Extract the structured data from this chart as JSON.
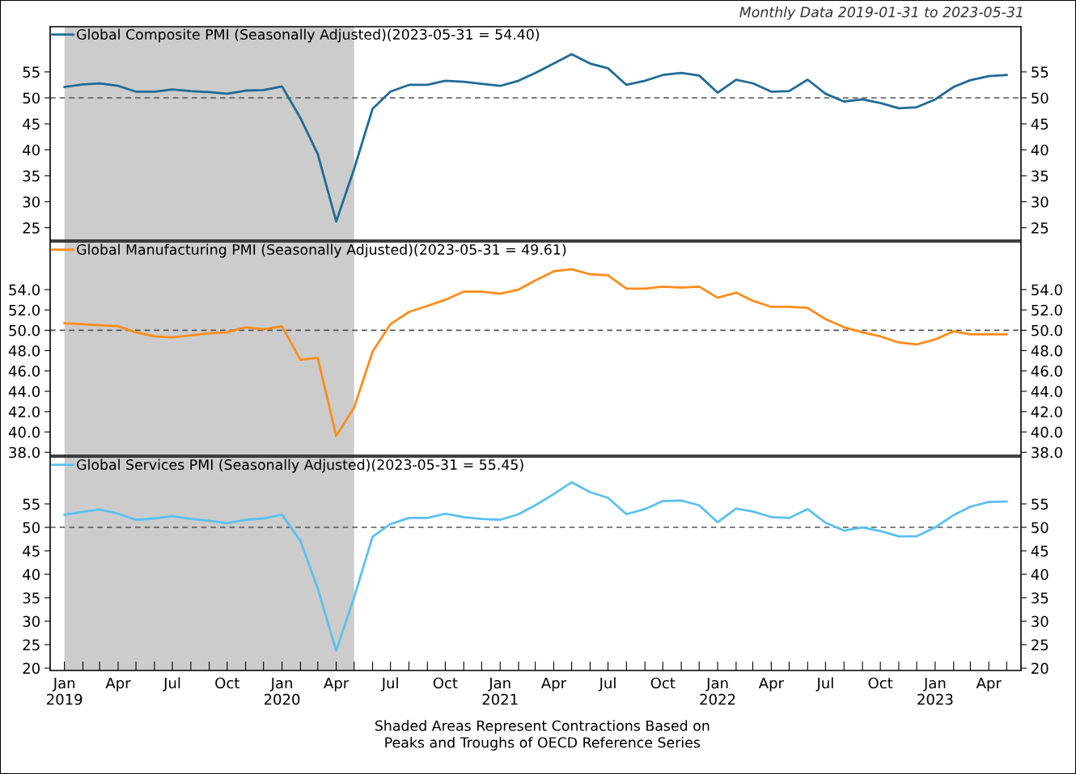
{
  "chart_data": [
    {
      "type": "line",
      "subtitle": "Monthly Data 2019-01-31 to 2023-05-31",
      "x": [
        "2019-01",
        "2019-02",
        "2019-03",
        "2019-04",
        "2019-05",
        "2019-06",
        "2019-07",
        "2019-08",
        "2019-09",
        "2019-10",
        "2019-11",
        "2019-12",
        "2020-01",
        "2020-02",
        "2020-03",
        "2020-04",
        "2020-05",
        "2020-06",
        "2020-07",
        "2020-08",
        "2020-09",
        "2020-10",
        "2020-11",
        "2020-12",
        "2021-01",
        "2021-02",
        "2021-03",
        "2021-04",
        "2021-05",
        "2021-06",
        "2021-07",
        "2021-08",
        "2021-09",
        "2021-10",
        "2021-11",
        "2021-12",
        "2022-01",
        "2022-02",
        "2022-03",
        "2022-04",
        "2022-05",
        "2022-06",
        "2022-07",
        "2022-08",
        "2022-09",
        "2022-10",
        "2022-11",
        "2022-12",
        "2023-01",
        "2023-02",
        "2023-03",
        "2023-04",
        "2023-05"
      ],
      "series": [
        {
          "name": "Global Composite PMI (Seasonally Adjusted)(2023-05-31 = 54.40)",
          "color": "#1f6a96",
          "values": [
            52.1,
            52.6,
            52.8,
            52.3,
            51.2,
            51.2,
            51.6,
            51.3,
            51.1,
            50.8,
            51.4,
            51.5,
            52.2,
            46.1,
            39.2,
            26.2,
            36.3,
            47.9,
            51.2,
            52.5,
            52.5,
            53.3,
            53.1,
            52.7,
            52.3,
            53.3,
            54.8,
            56.6,
            58.4,
            56.6,
            55.7,
            52.5,
            53.3,
            54.4,
            54.8,
            54.3,
            51.0,
            53.5,
            52.8,
            51.2,
            51.3,
            53.5,
            50.8,
            49.3,
            49.7,
            49.0,
            48.0,
            48.2,
            49.7,
            52.1,
            53.4,
            54.2,
            54.4
          ]
        }
      ],
      "xlim": [
        "2018-12-08",
        "2023-05-25"
      ],
      "ylim": [
        22.6,
        63.7
      ],
      "yticks": [
        25,
        30,
        35,
        40,
        45,
        50,
        55
      ],
      "y2lim": [
        22.6,
        63.7
      ],
      "y2ticks": [
        25,
        30,
        35,
        40,
        45,
        50,
        55
      ],
      "tick_labels": "y",
      "legend": "top left",
      "grid": false,
      "ref_lines": [
        {
          "axis": "y",
          "value": 50,
          "color": "#555555",
          "line_style": "dashed"
        }
      ],
      "bands": [
        {
          "axis": "x",
          "from": "2019-01",
          "to": "2020-05",
          "color": "#cccccc"
        }
      ]
    },
    {
      "type": "line",
      "x": [
        "2019-01",
        "2019-02",
        "2019-03",
        "2019-04",
        "2019-05",
        "2019-06",
        "2019-07",
        "2019-08",
        "2019-09",
        "2019-10",
        "2019-11",
        "2019-12",
        "2020-01",
        "2020-02",
        "2020-03",
        "2020-04",
        "2020-05",
        "2020-06",
        "2020-07",
        "2020-08",
        "2020-09",
        "2020-10",
        "2020-11",
        "2020-12",
        "2021-01",
        "2021-02",
        "2021-03",
        "2021-04",
        "2021-05",
        "2021-06",
        "2021-07",
        "2021-08",
        "2021-09",
        "2021-10",
        "2021-11",
        "2021-12",
        "2022-01",
        "2022-02",
        "2022-03",
        "2022-04",
        "2022-05",
        "2022-06",
        "2022-07",
        "2022-08",
        "2022-09",
        "2022-10",
        "2022-11",
        "2022-12",
        "2023-01",
        "2023-02",
        "2023-03",
        "2023-04",
        "2023-05"
      ],
      "series": [
        {
          "name": "Global Manufacturing PMI (Seasonally Adjusted)(2023-05-31 = 49.61)",
          "color": "#ff8c1a",
          "values": [
            50.7,
            50.6,
            50.5,
            50.4,
            49.8,
            49.4,
            49.3,
            49.5,
            49.7,
            49.8,
            50.3,
            50.1,
            50.4,
            47.1,
            47.3,
            39.6,
            42.4,
            47.9,
            50.6,
            51.8,
            52.4,
            53.0,
            53.8,
            53.8,
            53.6,
            54.0,
            54.9,
            55.8,
            56.0,
            55.5,
            55.4,
            54.1,
            54.1,
            54.3,
            54.2,
            54.3,
            53.2,
            53.7,
            52.9,
            52.3,
            52.3,
            52.2,
            51.1,
            50.3,
            49.8,
            49.4,
            48.8,
            48.6,
            49.1,
            49.9,
            49.6,
            49.6,
            49.6
          ]
        }
      ],
      "xlim": [
        "2018-12-08",
        "2023-05-25"
      ],
      "ylim": [
        37.7,
        58.7
      ],
      "yticks": [
        {
          "value": 38,
          "label": "38.0"
        },
        {
          "value": 40,
          "label": "40.0"
        },
        {
          "value": 42,
          "label": "42.0"
        },
        {
          "value": 44,
          "label": "44.0"
        },
        {
          "value": 46,
          "label": "46.0"
        },
        {
          "value": 48,
          "label": "48.0"
        },
        {
          "value": 50,
          "label": "50.0"
        },
        {
          "value": 52,
          "label": "52.0"
        },
        {
          "value": 54,
          "label": "54.0"
        }
      ],
      "y2lim": [
        37.7,
        58.7
      ],
      "y2ticks": [
        {
          "value": 38,
          "label": "38.0"
        },
        {
          "value": 40,
          "label": "40.0"
        },
        {
          "value": 42,
          "label": "42.0"
        },
        {
          "value": 44,
          "label": "44.0"
        },
        {
          "value": 46,
          "label": "46.0"
        },
        {
          "value": 48,
          "label": "48.0"
        },
        {
          "value": 50,
          "label": "50.0"
        },
        {
          "value": 52,
          "label": "52.0"
        },
        {
          "value": 54,
          "label": "54.0"
        }
      ],
      "tick_labels": "y",
      "legend": "top left",
      "grid": false,
      "ref_lines": [
        {
          "axis": "y",
          "value": 50,
          "color": "#555555",
          "line_style": "dashed"
        }
      ],
      "bands": [
        {
          "axis": "x",
          "from": "2019-01",
          "to": "2020-05",
          "color": "#cccccc"
        }
      ]
    },
    {
      "type": "line",
      "x": [
        "2019-01",
        "2019-02",
        "2019-03",
        "2019-04",
        "2019-05",
        "2019-06",
        "2019-07",
        "2019-08",
        "2019-09",
        "2019-10",
        "2019-11",
        "2019-12",
        "2020-01",
        "2020-02",
        "2020-03",
        "2020-04",
        "2020-05",
        "2020-06",
        "2020-07",
        "2020-08",
        "2020-09",
        "2020-10",
        "2020-11",
        "2020-12",
        "2021-01",
        "2021-02",
        "2021-03",
        "2021-04",
        "2021-05",
        "2021-06",
        "2021-07",
        "2021-08",
        "2021-09",
        "2021-10",
        "2021-11",
        "2021-12",
        "2022-01",
        "2022-02",
        "2022-03",
        "2022-04",
        "2022-05",
        "2022-06",
        "2022-07",
        "2022-08",
        "2022-09",
        "2022-10",
        "2022-11",
        "2022-12",
        "2023-01",
        "2023-02",
        "2023-03",
        "2023-04",
        "2023-05"
      ],
      "series": [
        {
          "name": "Global Services PMI (Seasonally Adjusted)(2023-05-31 = 55.45)",
          "color": "#5bc0f0",
          "values": [
            52.7,
            53.3,
            53.8,
            52.9,
            51.6,
            51.9,
            52.4,
            51.8,
            51.4,
            50.9,
            51.6,
            51.9,
            52.7,
            47.1,
            37.0,
            23.7,
            35.1,
            48.0,
            50.7,
            52.0,
            52.0,
            52.9,
            52.2,
            51.8,
            51.6,
            52.8,
            54.7,
            57.1,
            59.6,
            57.5,
            56.3,
            52.8,
            53.9,
            55.6,
            55.7,
            54.7,
            51.1,
            54.0,
            53.4,
            52.2,
            52.0,
            53.9,
            51.0,
            49.3,
            50.0,
            49.2,
            48.1,
            48.1,
            50.0,
            52.6,
            54.4,
            55.4,
            55.5
          ]
        }
      ],
      "xlim": [
        "2018-12-08",
        "2023-05-25"
      ],
      "ylim": [
        19.5,
        65
      ],
      "yticks": [
        20,
        25,
        30,
        35,
        40,
        45,
        50,
        55
      ],
      "y2lim": [
        19.5,
        65
      ],
      "y2ticks": [
        20,
        25,
        30,
        35,
        40,
        45,
        50,
        55
      ],
      "xticks": [
        {
          "value": "2019-01",
          "label": "Jan\n2019"
        },
        {
          "value": "2019-02",
          "label": null
        },
        {
          "value": "2019-03",
          "label": null
        },
        {
          "value": "2019-04",
          "label": "Apr"
        },
        {
          "value": "2019-05",
          "label": null
        },
        {
          "value": "2019-06",
          "label": null
        },
        {
          "value": "2019-07",
          "label": "Jul"
        },
        {
          "value": "2019-08",
          "label": null
        },
        {
          "value": "2019-09",
          "label": null
        },
        {
          "value": "2019-10",
          "label": "Oct"
        },
        {
          "value": "2019-11",
          "label": null
        },
        {
          "value": "2019-12",
          "label": null
        },
        {
          "value": "2020-01",
          "label": "Jan\n2020"
        },
        {
          "value": "2020-02",
          "label": null
        },
        {
          "value": "2020-03",
          "label": null
        },
        {
          "value": "2020-04",
          "label": "Apr"
        },
        {
          "value": "2020-05",
          "label": null
        },
        {
          "value": "2020-06",
          "label": null
        },
        {
          "value": "2020-07",
          "label": "Jul"
        },
        {
          "value": "2020-08",
          "label": null
        },
        {
          "value": "2020-09",
          "label": null
        },
        {
          "value": "2020-10",
          "label": "Oct"
        },
        {
          "value": "2020-11",
          "label": null
        },
        {
          "value": "2020-12",
          "label": null
        },
        {
          "value": "2021-01",
          "label": "Jan\n2021"
        },
        {
          "value": "2021-02",
          "label": null
        },
        {
          "value": "2021-03",
          "label": null
        },
        {
          "value": "2021-04",
          "label": "Apr"
        },
        {
          "value": "2021-05",
          "label": null
        },
        {
          "value": "2021-06",
          "label": null
        },
        {
          "value": "2021-07",
          "label": "Jul"
        },
        {
          "value": "2021-08",
          "label": null
        },
        {
          "value": "2021-09",
          "label": null
        },
        {
          "value": "2021-10",
          "label": "Oct"
        },
        {
          "value": "2021-11",
          "label": null
        },
        {
          "value": "2021-12",
          "label": null
        },
        {
          "value": "2022-01",
          "label": "Jan\n2022"
        },
        {
          "value": "2022-02",
          "label": null
        },
        {
          "value": "2022-03",
          "label": null
        },
        {
          "value": "2022-04",
          "label": "Apr"
        },
        {
          "value": "2022-05",
          "label": null
        },
        {
          "value": "2022-06",
          "label": null
        },
        {
          "value": "2022-07",
          "label": "Jul"
        },
        {
          "value": "2022-08",
          "label": null
        },
        {
          "value": "2022-09",
          "label": null
        },
        {
          "value": "2022-10",
          "label": "Oct"
        },
        {
          "value": "2022-11",
          "label": null
        },
        {
          "value": "2022-12",
          "label": null
        },
        {
          "value": "2023-01",
          "label": "Jan\n2023"
        },
        {
          "value": "2023-02",
          "label": null
        },
        {
          "value": "2023-03",
          "label": null
        },
        {
          "value": "2023-04",
          "label": "Apr"
        },
        {
          "value": "2023-05",
          "label": null
        }
      ],
      "legend": "top left",
      "grid": false,
      "annotations": [
        "Shaded Areas Represent Contractions Based on\nPeaks and Troughs of OECD Reference Series"
      ],
      "ref_lines": [
        {
          "axis": "y",
          "value": 50,
          "color": "#555555",
          "line_style": "dashed"
        }
      ],
      "bands": [
        {
          "axis": "x",
          "from": "2019-01",
          "to": "2020-05",
          "color": "#cccccc"
        }
      ]
    }
  ]
}
